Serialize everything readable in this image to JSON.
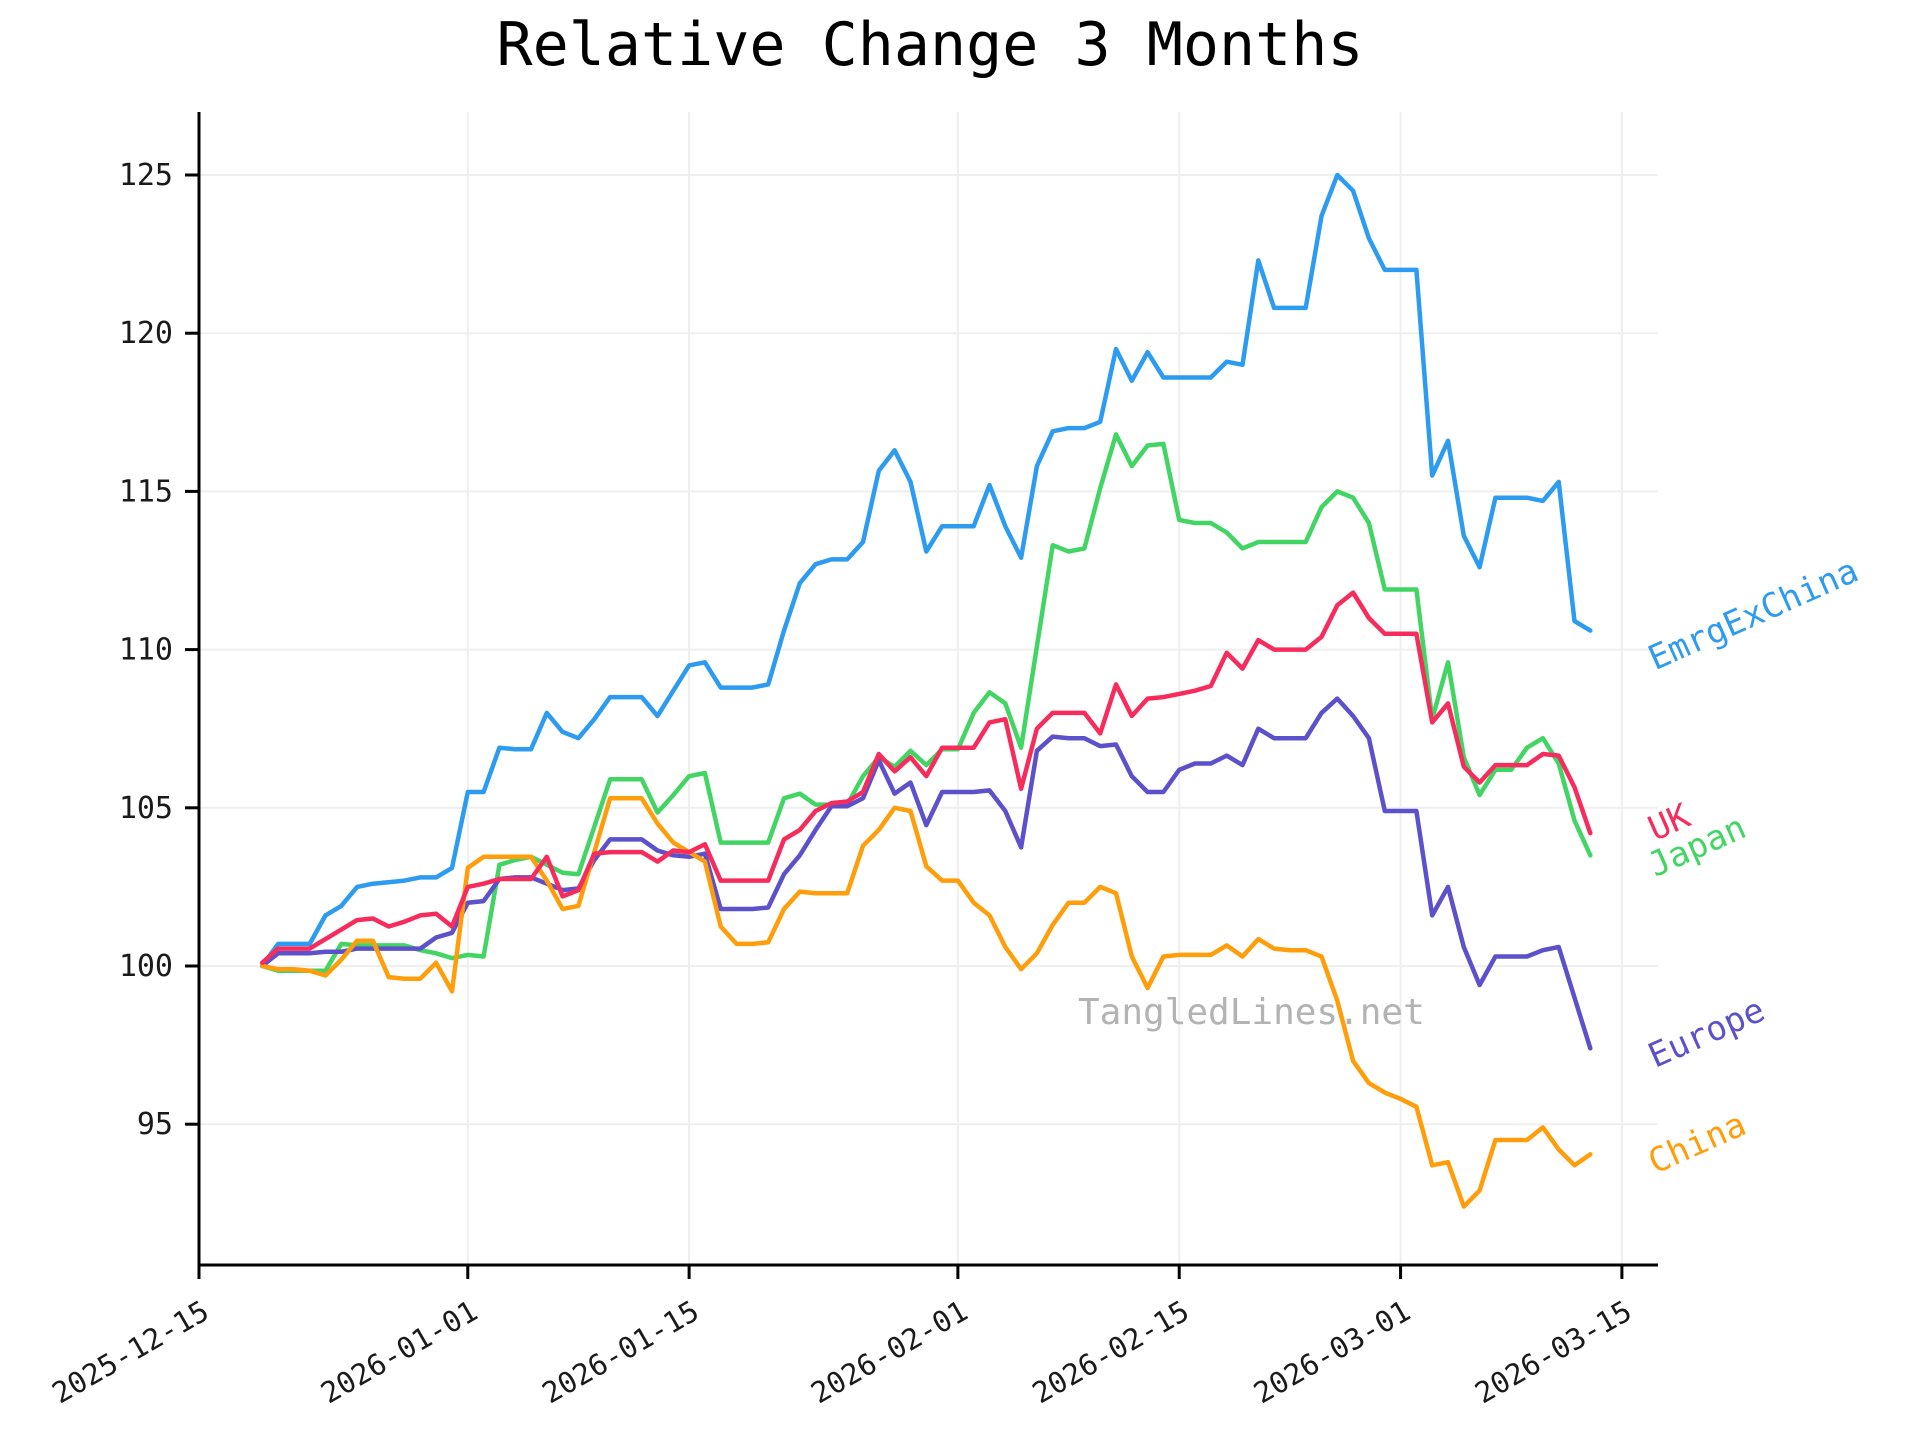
{
  "page": {
    "title": "Relative Change 3 Months",
    "watermark": "TangledLines.net"
  },
  "chart_data": {
    "type": "line",
    "title": "Relative Change 3 Months",
    "grid": true,
    "background": "#ffffff",
    "grid_color": "#efefef",
    "axis_color": "#000000",
    "tick_label_color": "#1a1a1a",
    "watermark_color": "#b3b3b3",
    "x_axis": {
      "start_date": "2025-12-15",
      "tick_labels": [
        "2025-12-15",
        "2026-01-01",
        "2026-01-15",
        "2026-02-01",
        "2026-02-15",
        "2026-03-01",
        "2026-03-15"
      ],
      "tick_day_offsets": [
        0,
        17,
        31,
        48,
        62,
        76,
        90
      ],
      "label_rotation_deg": -30
    },
    "y_axis": {
      "ticks": [
        95,
        100,
        105,
        110,
        115,
        120,
        125
      ],
      "ylim": [
        90.5,
        127.1
      ]
    },
    "first_day_offset": 4,
    "series": [
      {
        "name": "EmrgExChina",
        "color": "#2D9CF0",
        "label_dy": 28,
        "values": [
          100,
          100.7,
          100.7,
          100.7,
          101.6,
          101.9,
          102.5,
          102.6,
          102.65,
          102.7,
          102.8,
          102.8,
          103.1,
          105.5,
          105.5,
          106.9,
          106.85,
          106.85,
          108,
          107.4,
          107.2,
          107.8,
          108.5,
          108.5,
          108.5,
          107.9,
          108.7,
          109.5,
          109.6,
          108.8,
          108.8,
          108.8,
          108.9,
          110.6,
          112.1,
          112.7,
          112.85,
          112.85,
          113.4,
          115.65,
          116.3,
          115.3,
          113.1,
          113.9,
          113.9,
          113.9,
          115.2,
          113.9,
          112.9,
          115.8,
          116.9,
          117,
          117,
          117.2,
          119.5,
          118.5,
          119.4,
          118.6,
          118.6,
          118.6,
          118.6,
          119.1,
          119,
          122.3,
          120.8,
          120.8,
          120.8,
          123.7,
          125,
          124.5,
          123,
          122,
          122,
          122,
          115.5,
          116.6,
          113.6,
          112.6,
          114.8,
          114.8,
          114.8,
          114.7,
          115.3,
          110.9,
          110.6
        ]
      },
      {
        "name": "Japan",
        "color": "#42D563",
        "label_dy": 10,
        "values": [
          100,
          99.85,
          99.85,
          99.85,
          99.85,
          100.7,
          100.65,
          100.65,
          100.65,
          100.65,
          100.5,
          100.4,
          100.25,
          100.35,
          100.3,
          103.2,
          103.35,
          103.45,
          103.2,
          102.95,
          102.9,
          104.4,
          105.9,
          105.9,
          105.9,
          104.85,
          105.4,
          106,
          106.1,
          103.9,
          103.9,
          103.9,
          103.9,
          105.3,
          105.45,
          105.1,
          105.1,
          105.1,
          106,
          106.6,
          106.3,
          106.8,
          106.35,
          106.85,
          106.85,
          108,
          108.65,
          108.3,
          106.9,
          110.1,
          113.3,
          113.1,
          113.2,
          115.1,
          116.8,
          115.8,
          116.45,
          116.5,
          114.1,
          114,
          114,
          113.7,
          113.2,
          113.4,
          113.4,
          113.4,
          113.4,
          114.5,
          115,
          114.8,
          114,
          111.9,
          111.9,
          111.9,
          107.8,
          109.6,
          106.6,
          105.4,
          106.2,
          106.2,
          106.9,
          107.2,
          106.4,
          104.6,
          103.5
        ]
      },
      {
        "name": "Europe",
        "color": "#5C51CB",
        "label_dy": 8,
        "values": [
          100,
          100.4,
          100.4,
          100.4,
          100.45,
          100.45,
          100.55,
          100.55,
          100.55,
          100.55,
          100.55,
          100.9,
          101.05,
          102,
          102.05,
          102.75,
          102.8,
          102.8,
          102.6,
          102.4,
          102.45,
          103.35,
          104,
          104,
          104,
          103.65,
          103.5,
          103.45,
          103.55,
          101.8,
          101.8,
          101.8,
          101.85,
          102.9,
          103.5,
          104.3,
          105.05,
          105.05,
          105.3,
          106.5,
          105.45,
          105.8,
          104.45,
          105.5,
          105.5,
          105.5,
          105.55,
          104.9,
          103.75,
          106.8,
          107.25,
          107.2,
          107.2,
          106.95,
          107,
          106,
          105.5,
          105.5,
          106.2,
          106.4,
          106.4,
          106.65,
          106.35,
          107.5,
          107.2,
          107.2,
          107.2,
          108,
          108.45,
          107.9,
          107.2,
          104.9,
          104.9,
          104.9,
          101.6,
          102.5,
          100.6,
          99.4,
          100.3,
          100.3,
          100.3,
          100.5,
          100.6,
          99,
          97.4
        ]
      },
      {
        "name": "China",
        "color": "#FF9D0A",
        "label_dy": 8,
        "values": [
          100,
          99.9,
          99.9,
          99.85,
          99.7,
          100.2,
          100.8,
          100.8,
          99.65,
          99.6,
          99.6,
          100.1,
          99.2,
          103.1,
          103.45,
          103.45,
          103.45,
          103.45,
          102.7,
          101.8,
          101.9,
          103.6,
          105.3,
          105.3,
          105.3,
          104.5,
          103.9,
          103.6,
          103.3,
          101.25,
          100.7,
          100.7,
          100.75,
          101.8,
          102.35,
          102.3,
          102.3,
          102.3,
          103.8,
          104.3,
          105,
          104.9,
          103.15,
          102.7,
          102.7,
          102,
          101.6,
          100.6,
          99.9,
          100.4,
          101.3,
          102,
          102,
          102.5,
          102.3,
          100.3,
          99.3,
          100.3,
          100.35,
          100.35,
          100.35,
          100.65,
          100.3,
          100.85,
          100.55,
          100.5,
          100.5,
          100.3,
          98.9,
          97,
          96.3,
          96,
          95.8,
          95.55,
          93.7,
          93.8,
          92.4,
          92.9,
          94.5,
          94.5,
          94.5,
          94.9,
          94.2,
          93.7,
          94.05
        ]
      },
      {
        "name": "UK",
        "color": "#F72C5C",
        "label_dy": -4,
        "values": [
          100.1,
          100.55,
          100.55,
          100.55,
          100.85,
          101.15,
          101.45,
          101.5,
          101.25,
          101.4,
          101.6,
          101.65,
          101.25,
          102.5,
          102.6,
          102.75,
          102.75,
          102.75,
          103.45,
          102.2,
          102.4,
          103.55,
          103.6,
          103.6,
          103.6,
          103.3,
          103.65,
          103.6,
          103.85,
          102.7,
          102.7,
          102.7,
          102.7,
          104,
          104.3,
          104.9,
          105.15,
          105.2,
          105.5,
          106.7,
          106.15,
          106.6,
          106,
          106.9,
          106.9,
          106.9,
          107.7,
          107.8,
          105.6,
          107.5,
          108,
          108,
          108,
          107.35,
          108.9,
          107.9,
          108.45,
          108.5,
          108.6,
          108.7,
          108.85,
          109.9,
          109.4,
          110.3,
          110,
          110,
          110,
          110.4,
          111.4,
          111.8,
          111,
          110.5,
          110.5,
          110.5,
          107.7,
          108.3,
          106.3,
          105.8,
          106.35,
          106.35,
          106.35,
          106.7,
          106.65,
          105.65,
          104.2
        ]
      }
    ]
  }
}
